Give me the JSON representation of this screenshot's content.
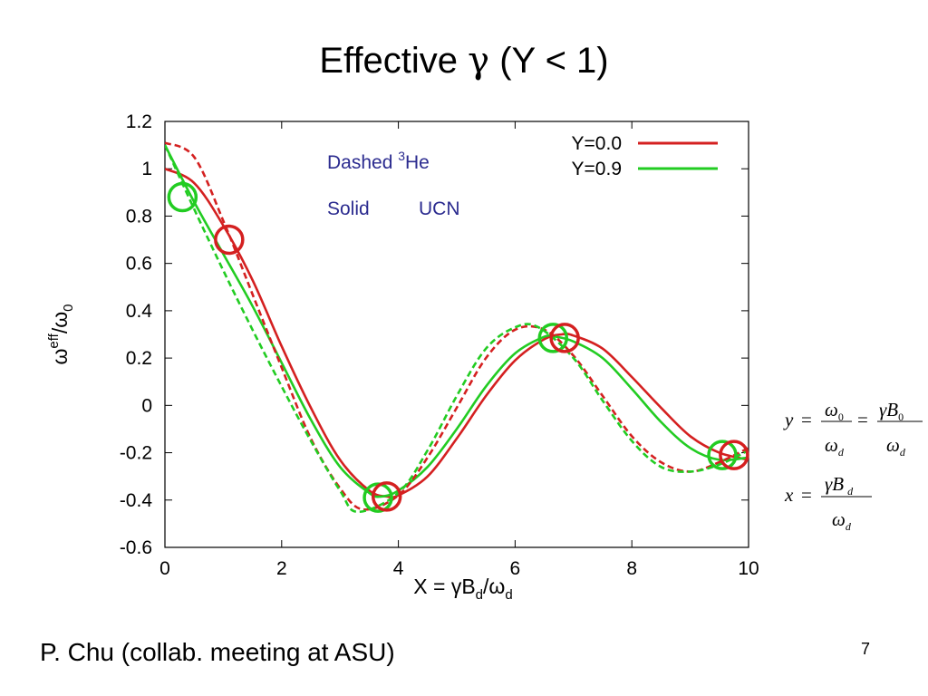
{
  "slide": {
    "title_prefix": "Effective ",
    "title_greek": "γ",
    "title_suffix": " (Y < 1)",
    "footer": "P. Chu (collab. meeting at ASU)",
    "page_number": "7"
  },
  "annotations": {
    "dashed_word": "Dashed ",
    "dashed_sup": "3",
    "dashed_rest": "He",
    "solid_word": "Solid",
    "solid_rest": "UCN"
  },
  "formulas": {
    "y_lhs": "y",
    "y_num1": "ω",
    "y_num1_sub": "0",
    "y_den1": "ω",
    "y_den1_sub": "d",
    "y_num2": "γB",
    "y_num2_sub": "0",
    "y_den2": "ω",
    "y_den2_sub": "d",
    "x_lhs": "x",
    "x_num": "γB",
    "x_num_sub": "d",
    "x_den": "ω",
    "x_den_sub": "d",
    "eq": "="
  },
  "chart_data": {
    "type": "line",
    "xlabel_main": "X = γB",
    "xlabel_sub1": "d",
    "xlabel_mid": "/ω",
    "xlabel_sub2": "d",
    "ylabel_main": "ω",
    "ylabel_sup": "eff",
    "ylabel_mid": "/ω",
    "ylabel_sub": "0",
    "xlim": [
      0,
      10
    ],
    "ylim": [
      -0.6,
      1.2
    ],
    "xticks": [
      "0",
      "2",
      "4",
      "6",
      "8",
      "10"
    ],
    "yticks": [
      "-0.6",
      "-0.4",
      "-0.2",
      "0",
      "0.2",
      "0.4",
      "0.6",
      "0.8",
      "1",
      "1.2"
    ],
    "grid": false,
    "legend_position": "top-right",
    "legend": [
      {
        "label": "Y=0.0",
        "color": "#d42020"
      },
      {
        "label": "Y=0.9",
        "color": "#22cc22"
      }
    ],
    "series": [
      {
        "style": "solid",
        "color": "#d42020",
        "x": [
          0,
          0.5,
          1,
          1.5,
          2,
          2.5,
          3,
          3.5,
          3.8,
          4,
          4.5,
          5,
          5.5,
          6,
          6.5,
          6.8,
          7,
          7.5,
          8,
          8.5,
          9,
          9.5,
          10
        ],
        "y": [
          1.0,
          0.94,
          0.76,
          0.53,
          0.25,
          -0.01,
          -0.23,
          -0.36,
          -0.385,
          -0.38,
          -0.3,
          -0.14,
          0.04,
          0.19,
          0.28,
          0.3,
          0.295,
          0.24,
          0.12,
          -0.01,
          -0.13,
          -0.2,
          -0.23
        ]
      },
      {
        "style": "solid",
        "color": "#22cc22",
        "x": [
          0,
          0.5,
          1,
          1.5,
          2,
          2.5,
          3,
          3.5,
          3.7,
          4,
          4.5,
          5,
          5.5,
          6,
          6.5,
          6.7,
          7,
          7.5,
          8,
          8.5,
          9,
          9.5,
          10
        ],
        "y": [
          1.1,
          0.86,
          0.64,
          0.42,
          0.18,
          -0.06,
          -0.26,
          -0.37,
          -0.385,
          -0.36,
          -0.26,
          -0.1,
          0.08,
          0.22,
          0.29,
          0.29,
          0.27,
          0.2,
          0.07,
          -0.07,
          -0.18,
          -0.23,
          -0.22
        ]
      },
      {
        "style": "dashed",
        "color": "#d42020",
        "x": [
          0,
          0.5,
          1,
          1.5,
          2,
          2.5,
          3,
          3.4,
          4,
          4.5,
          5,
          5.5,
          6,
          6.5,
          7,
          7.5,
          8,
          8.5,
          9,
          9.5,
          10
        ],
        "y": [
          1.11,
          1.05,
          0.78,
          0.47,
          0.16,
          -0.14,
          -0.35,
          -0.44,
          -0.38,
          -0.22,
          -0.01,
          0.2,
          0.32,
          0.32,
          0.21,
          0.04,
          -0.13,
          -0.24,
          -0.28,
          -0.24,
          -0.18
        ]
      },
      {
        "style": "dashed",
        "color": "#22cc22",
        "x": [
          0,
          0.5,
          1,
          1.5,
          2,
          2.5,
          3,
          3.3,
          4,
          4.5,
          5,
          5.5,
          6,
          6.4,
          7,
          7.5,
          8,
          8.5,
          9,
          9.5,
          10
        ],
        "y": [
          1.1,
          0.83,
          0.57,
          0.32,
          0.08,
          -0.15,
          -0.36,
          -0.45,
          -0.37,
          -0.19,
          0.04,
          0.24,
          0.33,
          0.33,
          0.2,
          0.02,
          -0.15,
          -0.26,
          -0.28,
          -0.25,
          -0.19
        ]
      }
    ],
    "markers": [
      {
        "x": 0.3,
        "y": 0.88,
        "color": "#22cc22"
      },
      {
        "x": 1.1,
        "y": 0.7,
        "color": "#d42020"
      },
      {
        "x": 3.65,
        "y": -0.39,
        "color": "#22cc22"
      },
      {
        "x": 3.8,
        "y": -0.385,
        "color": "#d42020"
      },
      {
        "x": 6.65,
        "y": 0.285,
        "color": "#22cc22"
      },
      {
        "x": 6.85,
        "y": 0.285,
        "color": "#d42020"
      },
      {
        "x": 9.55,
        "y": -0.21,
        "color": "#22cc22"
      },
      {
        "x": 9.75,
        "y": -0.21,
        "color": "#d42020"
      }
    ]
  }
}
